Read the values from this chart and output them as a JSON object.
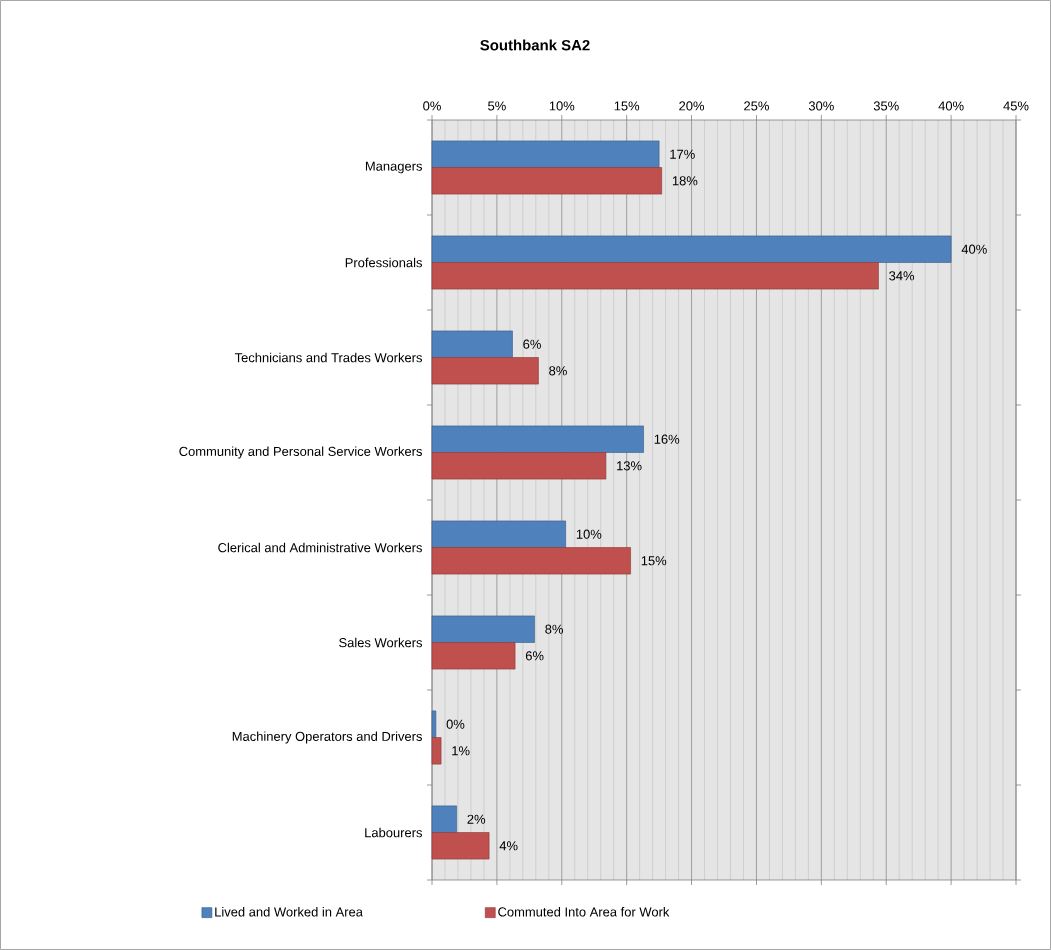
{
  "chart_data": {
    "type": "bar",
    "orientation": "horizontal",
    "title": "Southbank SA2",
    "categories": [
      "Managers",
      "Professionals",
      "Technicians and Trades Workers",
      "Community and Personal Service Workers",
      "Clerical and Administrative Workers",
      "Sales Workers",
      "Machinery Operators and Drivers",
      "Labourers"
    ],
    "series": [
      {
        "name": "Lived and Worked in Area",
        "color": "#4f81bd",
        "values": [
          17.5,
          40.0,
          6.2,
          16.3,
          10.3,
          7.9,
          0.3,
          1.9
        ],
        "value_labels": [
          "17%",
          "40%",
          "6%",
          "16%",
          "10%",
          "8%",
          "0%",
          "2%"
        ]
      },
      {
        "name": "Commuted Into Area for Work",
        "color": "#c0504d",
        "values": [
          17.7,
          34.4,
          8.2,
          13.4,
          15.3,
          6.4,
          0.7,
          4.4
        ],
        "value_labels": [
          "18%",
          "34%",
          "8%",
          "13%",
          "15%",
          "6%",
          "1%",
          "4%"
        ]
      }
    ],
    "xlim": [
      0,
      45
    ],
    "xticks": [
      {
        "value": 0,
        "label": "0%"
      },
      {
        "value": 5,
        "label": "5%"
      },
      {
        "value": 10,
        "label": "10%"
      },
      {
        "value": 15,
        "label": "15%"
      },
      {
        "value": 20,
        "label": "20%"
      },
      {
        "value": 25,
        "label": "25%"
      },
      {
        "value": 30,
        "label": "30%"
      },
      {
        "value": 35,
        "label": "35%"
      },
      {
        "value": 40,
        "label": "40%"
      },
      {
        "value": 45,
        "label": "45%"
      }
    ],
    "grid": "x",
    "legend": "bottom"
  }
}
